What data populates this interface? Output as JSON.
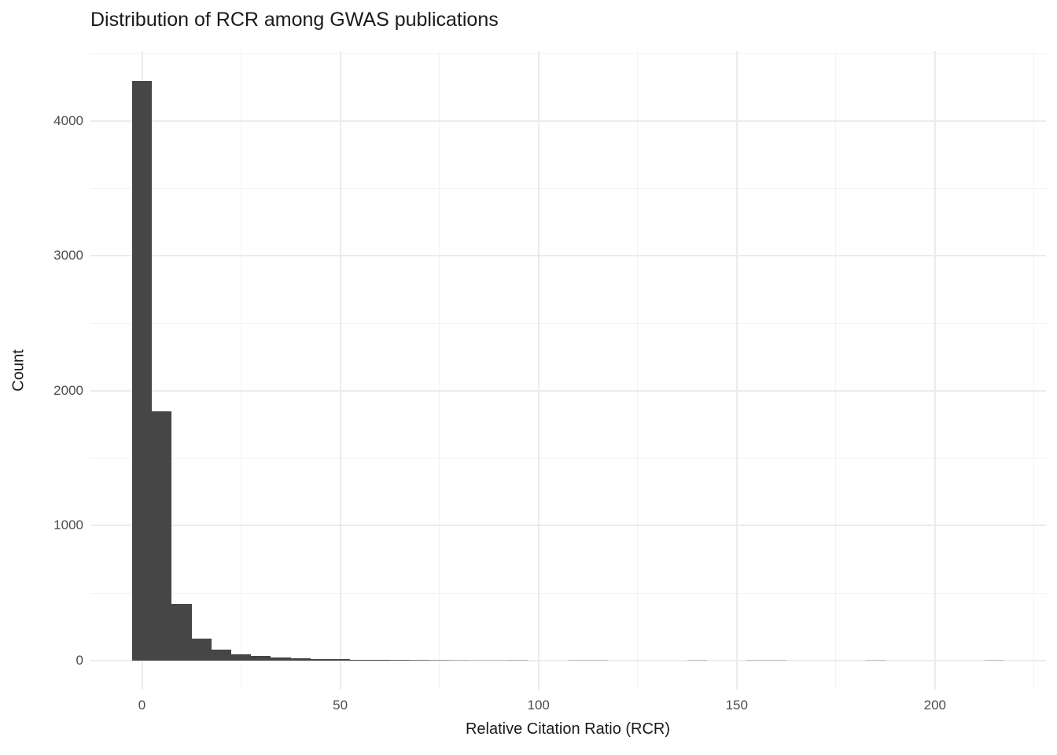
{
  "chart_data": {
    "type": "bar",
    "variant": "histogram",
    "title": "Distribution of RCR among GWAS publications",
    "xlabel": "Relative Citation Ratio (RCR)",
    "ylabel": "Count",
    "binwidth": 5,
    "bin_centers": [
      0,
      5,
      10,
      15,
      20,
      25,
      30,
      35,
      40,
      45,
      50,
      55,
      60,
      65,
      70,
      75,
      80,
      85,
      90,
      95,
      100,
      105,
      110,
      115,
      120,
      125,
      130,
      135,
      140,
      145,
      150,
      155,
      160,
      165,
      170,
      175,
      180,
      185,
      190,
      195,
      200,
      205,
      210,
      215
    ],
    "counts": [
      4300,
      1850,
      420,
      165,
      80,
      45,
      33,
      23,
      17,
      12,
      10,
      8,
      6,
      5,
      4,
      3,
      2,
      1,
      1,
      2,
      0,
      0,
      1,
      1,
      0,
      0,
      0,
      0,
      1,
      0,
      0,
      1,
      1,
      0,
      0,
      0,
      0,
      1,
      0,
      0,
      0,
      0,
      0,
      1
    ],
    "xlim": [
      -13,
      228
    ],
    "ylim": [
      -216,
      4519
    ],
    "x_major_ticks": [
      0,
      50,
      100,
      150,
      200
    ],
    "x_minor_ticks": [
      25,
      75,
      125,
      175,
      225
    ],
    "x_tick_labels": [
      "0",
      "50",
      "100",
      "150",
      "200"
    ],
    "y_major_ticks": [
      0,
      1000,
      2000,
      3000,
      4000
    ],
    "y_minor_ticks": [
      500,
      1500,
      2500,
      3500,
      4500
    ],
    "y_tick_labels": [
      "0",
      "1000",
      "2000",
      "3000",
      "4000"
    ],
    "grid": "on",
    "legend": "none",
    "colors": {
      "bar_fill": "#464646",
      "grid_major": "#ebebeb",
      "grid_minor": "#f2f2f2",
      "axis_text": "#4d4d4d",
      "title_text": "#1a1a1a",
      "background": "#ffffff"
    }
  }
}
